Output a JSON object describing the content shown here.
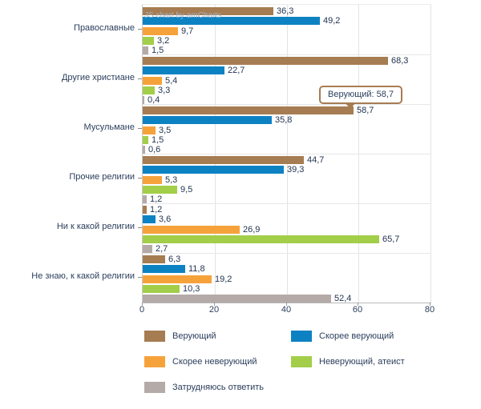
{
  "watermark": {
    "label": "JS chart by amCharts"
  },
  "tooltip": {
    "label": "Верующий: 58,7"
  },
  "chart_data": {
    "type": "bar",
    "orientation": "horizontal",
    "title": "",
    "xlabel": "",
    "ylabel": "",
    "categories": [
      "Православные",
      "Другие христиане",
      "Мусульмане",
      "Прочие религии",
      "Ни к какой религии",
      "Не знаю, к какой религии"
    ],
    "series": [
      {
        "name": "Верующий",
        "color": "#a67c52",
        "values": [
          36.3,
          68.3,
          58.7,
          44.7,
          1.2,
          6.3
        ]
      },
      {
        "name": "Скорее верующий",
        "color": "#0d82c3",
        "values": [
          49.2,
          22.7,
          35.8,
          39.3,
          3.6,
          11.8
        ]
      },
      {
        "name": "Скорее неверующий",
        "color": "#f6a23b",
        "values": [
          9.7,
          5.4,
          3.5,
          5.3,
          26.9,
          19.2
        ]
      },
      {
        "name": "Неверующий, атеист",
        "color": "#a2ce4a",
        "values": [
          3.2,
          3.3,
          1.5,
          9.5,
          65.7,
          10.3
        ]
      },
      {
        "name": "Затрудняюсь ответить",
        "color": "#b4aaa7",
        "values": [
          1.5,
          0.4,
          0.6,
          1.2,
          2.7,
          52.4
        ]
      }
    ],
    "xlim": [
      0,
      80
    ],
    "x_ticks": [
      0,
      20,
      40,
      60,
      80
    ],
    "grid": true,
    "legend_position": "bottom",
    "value_label_decimal_separator": ","
  }
}
